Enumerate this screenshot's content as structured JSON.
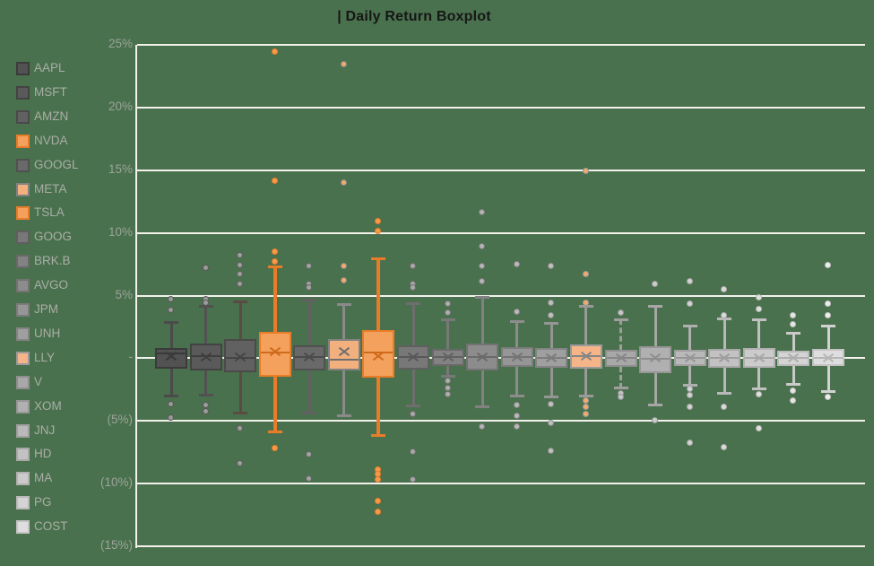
{
  "chart_data": {
    "type": "boxplot",
    "title": "| Daily Return Boxplot",
    "grid": true,
    "legend_position": "left",
    "colors": {
      "background": "#4a714d",
      "gridline": "#f2f1ec",
      "title_text": "#161616",
      "axis_label": "#9ba39b",
      "legend_label": "#a9aea7",
      "orange_accent": "#e87c28"
    },
    "y_axis": {
      "min": -15,
      "max": 25,
      "step": 5,
      "ticks": [
        {
          "value": 25,
          "label": "25%"
        },
        {
          "value": 20,
          "label": "20%"
        },
        {
          "value": 15,
          "label": "15%"
        },
        {
          "value": 10,
          "label": "10%"
        },
        {
          "value": 5,
          "label": "5%"
        },
        {
          "value": 0,
          "label": "-"
        },
        {
          "value": -5,
          "label": "(5%)"
        },
        {
          "value": -10,
          "label": "(10%)"
        },
        {
          "value": -15,
          "label": "(15%)"
        }
      ]
    },
    "series": [
      {
        "ticker": "AAPL",
        "fill": "#525252",
        "border": "#3b3b3b",
        "line": "#4a4a4a",
        "accent": "#3a3a3a",
        "dot_fill": "#9a9a9a",
        "dot_ring": "#565656",
        "q1": -0.85,
        "median": 0.4,
        "q3": 0.8,
        "mean": 0.15,
        "whisker_low": -3.05,
        "whisker_high": 2.9,
        "outliers_high": [
          4.7,
          3.8
        ],
        "outliers_low": [
          -3.7,
          -4.8
        ],
        "dashed": false
      },
      {
        "ticker": "MSFT",
        "fill": "#5a5a5a",
        "border": "#434343",
        "line": "#515151",
        "accent": "#3f3f3f",
        "dot_fill": "#9c9c9c",
        "dot_ring": "#5a5a5a",
        "q1": -0.95,
        "median": 0.15,
        "q3": 1.2,
        "mean": 0.1,
        "whisker_low": -3.0,
        "whisker_high": 4.2,
        "outliers_high": [
          7.2,
          4.7,
          4.4
        ],
        "outliers_low": [
          -3.8,
          -4.3
        ],
        "dashed": false
      },
      {
        "ticker": "AMZN",
        "fill": "#616161",
        "border": "#4a4a4a",
        "line": "#5a4b43",
        "accent": "#454545",
        "dot_fill": "#9e9e9e",
        "dot_ring": "#5e5e5e",
        "q1": -1.1,
        "median": 0.05,
        "q3": 1.55,
        "mean": 0.1,
        "whisker_low": -4.4,
        "whisker_high": 4.5,
        "outliers_high": [
          8.2,
          7.4,
          6.7,
          5.9
        ],
        "outliers_low": [
          -5.6,
          -8.4
        ],
        "dashed": false
      },
      {
        "ticker": "NVDA",
        "fill": "#f4a15d",
        "border": "#e87c28",
        "line": "#e87c28",
        "accent": "#cf6a1c",
        "dot_fill": "#f49b4e",
        "dot_ring": "#e87c28",
        "q1": -1.45,
        "median": 0.45,
        "q3": 2.1,
        "mean": 0.5,
        "whisker_low": -5.9,
        "whisker_high": 7.3,
        "outliers_high": [
          24.4,
          14.1,
          8.5,
          7.7
        ],
        "outliers_low": [
          -7.2
        ],
        "dashed": false
      },
      {
        "ticker": "GOOGL",
        "fill": "#696969",
        "border": "#515151",
        "line": "#616161",
        "accent": "#4b4b4b",
        "dot_fill": "#a2a2a2",
        "dot_ring": "#646464",
        "q1": -0.95,
        "median": 0.1,
        "q3": 1.05,
        "mean": 0.08,
        "whisker_low": -4.4,
        "whisker_high": 4.7,
        "outliers_high": [
          7.3,
          5.9,
          5.6
        ],
        "outliers_low": [
          -7.7,
          -9.6
        ],
        "dashed": false
      },
      {
        "ticker": "META",
        "fill": "#f2b07e",
        "border": "#828282",
        "line": "#8a8a8a",
        "accent": "#6e6e6e",
        "dot_fill": "#f2a96b",
        "dot_ring": "#8a8a8a",
        "q1": -1.0,
        "median": -0.1,
        "q3": 1.55,
        "mean": 0.5,
        "whisker_low": -4.6,
        "whisker_high": 4.3,
        "outliers_high": [
          23.4,
          14.0,
          7.3,
          6.2
        ],
        "outliers_low": [],
        "dashed": false
      },
      {
        "ticker": "TSLA",
        "fill": "#f4a15d",
        "border": "#e87c28",
        "line": "#e87c28",
        "accent": "#cf6a1c",
        "dot_fill": "#f49b4e",
        "dot_ring": "#e87c28",
        "q1": -1.55,
        "median": 0.45,
        "q3": 2.25,
        "mean": 0.2,
        "whisker_low": -6.2,
        "whisker_high": 8.0,
        "outliers_high": [
          10.9,
          10.1
        ],
        "outliers_low": [
          -8.9,
          -9.3,
          -9.7,
          -11.4,
          -12.3
        ],
        "dashed": false
      },
      {
        "ticker": "GOOG",
        "fill": "#787878",
        "border": "#5f5f5f",
        "line": "#6e6e6e",
        "accent": "#585858",
        "dot_fill": "#a8a8a8",
        "dot_ring": "#6e6e6e",
        "q1": -0.9,
        "median": 0.1,
        "q3": 1.05,
        "mean": 0.08,
        "whisker_low": -3.85,
        "whisker_high": 4.4,
        "outliers_high": [
          7.3,
          5.9,
          5.6
        ],
        "outliers_low": [
          -4.5,
          -7.5,
          -9.7
        ],
        "dashed": false
      },
      {
        "ticker": "BRK.B",
        "fill": "#828282",
        "border": "#696969",
        "line": "#787878",
        "accent": "#616161",
        "dot_fill": "#aeaeae",
        "dot_ring": "#757575",
        "q1": -0.6,
        "median": 0.08,
        "q3": 0.75,
        "mean": 0.07,
        "whisker_low": -1.5,
        "whisker_high": 3.1,
        "outliers_high": [
          4.3,
          3.6
        ],
        "outliers_low": [
          -1.8,
          -2.4,
          -2.9
        ],
        "dashed": false
      },
      {
        "ticker": "AVGO",
        "fill": "#8c8c8c",
        "border": "#737373",
        "line": "#828282",
        "accent": "#6a6a6a",
        "dot_fill": "#b4b4b4",
        "dot_ring": "#7c7c7c",
        "q1": -1.0,
        "median": 0.1,
        "q3": 1.2,
        "mean": 0.08,
        "whisker_low": -3.9,
        "whisker_high": 4.9,
        "outliers_high": [
          11.6,
          8.9,
          7.3,
          6.1
        ],
        "outliers_low": [
          -5.5
        ],
        "dashed": false
      },
      {
        "ticker": "JPM",
        "fill": "#969696",
        "border": "#7c7c7c",
        "line": "#8c8c8c",
        "accent": "#747474",
        "dot_fill": "#bababa",
        "dot_ring": "#848484",
        "q1": -0.72,
        "median": 0.08,
        "q3": 0.85,
        "mean": 0.07,
        "whisker_low": -3.05,
        "whisker_high": 2.95,
        "outliers_high": [
          7.5,
          3.7
        ],
        "outliers_low": [
          -3.8,
          -4.6,
          -5.5
        ],
        "dashed": false
      },
      {
        "ticker": "UNH",
        "fill": "#9f9f9f",
        "border": "#848484",
        "line": "#959595",
        "accent": "#7c7c7c",
        "dot_fill": "#c0c0c0",
        "dot_ring": "#8c8c8c",
        "q1": -0.78,
        "median": 0.05,
        "q3": 0.8,
        "mean": 0.05,
        "whisker_low": -3.15,
        "whisker_high": 2.8,
        "outliers_high": [
          7.3,
          4.4,
          3.4
        ],
        "outliers_low": [
          -3.7,
          -5.2,
          -7.4
        ],
        "dashed": false
      },
      {
        "ticker": "LLY",
        "fill": "#f5b588",
        "border": "#9a9a9a",
        "line": "#9a9a9a",
        "accent": "#858585",
        "dot_fill": "#f2a96b",
        "dot_ring": "#9a9a9a",
        "q1": -0.85,
        "median": 0.2,
        "q3": 1.1,
        "mean": 0.15,
        "whisker_low": -3.05,
        "whisker_high": 4.15,
        "outliers_high": [
          14.9,
          6.7,
          4.4
        ],
        "outliers_low": [
          -3.4,
          -3.9,
          -4.5
        ],
        "dashed": false
      },
      {
        "ticker": "V",
        "fill": "#a8a8a8",
        "border": "#8e8e8e",
        "line": "#9e9e9e",
        "accent": "#868686",
        "dot_fill": "#c6c6c6",
        "dot_ring": "#949494",
        "q1": -0.7,
        "median": 0.05,
        "q3": 0.65,
        "mean": 0.04,
        "whisker_low": -2.4,
        "whisker_high": 3.1,
        "outliers_high": [
          3.6
        ],
        "outliers_low": [
          -2.8,
          -3.1
        ],
        "dashed": true
      },
      {
        "ticker": "XOM",
        "fill": "#b0b0b0",
        "border": "#969696",
        "line": "#a6a6a6",
        "accent": "#8e8e8e",
        "dot_fill": "#cccccc",
        "dot_ring": "#9c9c9c",
        "q1": -1.2,
        "median": -0.05,
        "q3": 0.95,
        "mean": 0.0,
        "whisker_low": -3.8,
        "whisker_high": 4.2,
        "outliers_high": [
          5.9
        ],
        "outliers_low": [
          -5.0
        ],
        "dashed": false
      },
      {
        "ticker": "JNJ",
        "fill": "#b9b9b9",
        "border": "#9f9f9f",
        "line": "#afafaf",
        "accent": "#969696",
        "dot_fill": "#d2d2d2",
        "dot_ring": "#a4a4a4",
        "q1": -0.62,
        "median": 0.04,
        "q3": 0.65,
        "mean": 0.04,
        "whisker_low": -2.2,
        "whisker_high": 2.6,
        "outliers_high": [
          6.1,
          4.3
        ],
        "outliers_low": [
          -2.5,
          -3.0,
          -3.9,
          -6.8
        ],
        "dashed": false
      },
      {
        "ticker": "HD",
        "fill": "#c2c2c2",
        "border": "#a8a8a8",
        "line": "#b8b8b8",
        "accent": "#9e9e9e",
        "dot_fill": "#dadada",
        "dot_ring": "#acacac",
        "q1": -0.78,
        "median": 0.05,
        "q3": 0.72,
        "mean": 0.04,
        "whisker_low": -2.8,
        "whisker_high": 3.2,
        "outliers_high": [
          5.5,
          3.4
        ],
        "outliers_low": [
          -3.9,
          -7.1
        ],
        "dashed": false
      },
      {
        "ticker": "MA",
        "fill": "#cbcbcb",
        "border": "#b1b1b1",
        "line": "#c1c1c1",
        "accent": "#a6a6a6",
        "dot_fill": "#e0e0e0",
        "dot_ring": "#b4b4b4",
        "q1": -0.78,
        "median": 0.05,
        "q3": 0.78,
        "mean": 0.05,
        "whisker_low": -2.5,
        "whisker_high": 3.1,
        "outliers_high": [
          4.8,
          3.9
        ],
        "outliers_low": [
          -2.9,
          -5.6
        ],
        "dashed": false
      },
      {
        "ticker": "PG",
        "fill": "#d4d4d4",
        "border": "#bababa",
        "line": "#cacaca",
        "accent": "#aeaeae",
        "dot_fill": "#e6e6e6",
        "dot_ring": "#bcbcbc",
        "q1": -0.62,
        "median": 0.03,
        "q3": 0.58,
        "mean": 0.03,
        "whisker_low": -2.1,
        "whisker_high": 2.0,
        "outliers_high": [
          3.4,
          2.7
        ],
        "outliers_low": [
          -2.6,
          -3.4
        ],
        "dashed": false
      },
      {
        "ticker": "COST",
        "fill": "#dedede",
        "border": "#c3c3c3",
        "line": "#d2d2d2",
        "accent": "#b6b6b6",
        "dot_fill": "#eeeeee",
        "dot_ring": "#c4c4c4",
        "q1": -0.6,
        "median": 0.05,
        "q3": 0.72,
        "mean": 0.04,
        "whisker_low": -2.7,
        "whisker_high": 2.6,
        "outliers_high": [
          7.4,
          4.3,
          3.4
        ],
        "outliers_low": [
          -3.1
        ],
        "dashed": false
      }
    ]
  }
}
